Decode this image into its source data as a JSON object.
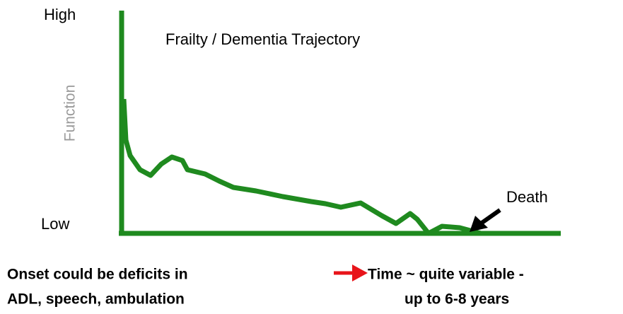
{
  "axis": {
    "high": "High",
    "low": "Low",
    "label": "Function"
  },
  "title": "Frailty / Dementia Trajectory",
  "end_label": "Death",
  "onset": {
    "line1": "Onset could be deficits in",
    "line2": "ADL, speech, ambulation"
  },
  "time": {
    "line1": "Time ~ quite variable -",
    "line2": "up to 6-8 years"
  }
}
